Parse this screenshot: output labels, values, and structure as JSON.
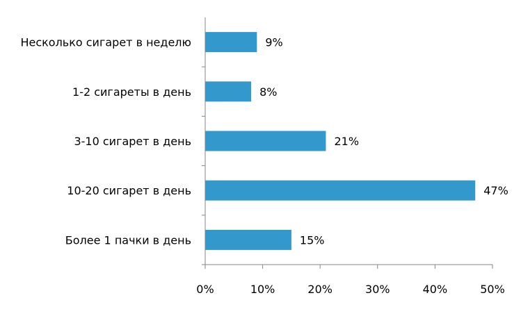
{
  "chart_data": {
    "type": "bar",
    "orientation": "horizontal",
    "categories": [
      "Несколько сигарет в неделю",
      "1-2 сигареты в день",
      "3-10 сигарет в день",
      "10-20 сигарет в день",
      "Более 1 пачки в день"
    ],
    "values": [
      9,
      8,
      21,
      47,
      15
    ],
    "data_labels": [
      "9%",
      "8%",
      "21%",
      "47%",
      "15%"
    ],
    "xlim": [
      0,
      50
    ],
    "x_ticks": [
      0,
      10,
      20,
      30,
      40,
      50
    ],
    "x_tick_labels": [
      "0%",
      "10%",
      "20%",
      "30%",
      "40%",
      "50%"
    ],
    "grid": false,
    "legend": "none",
    "bar_color": "#3399CC",
    "axis_color": "#868686"
  }
}
